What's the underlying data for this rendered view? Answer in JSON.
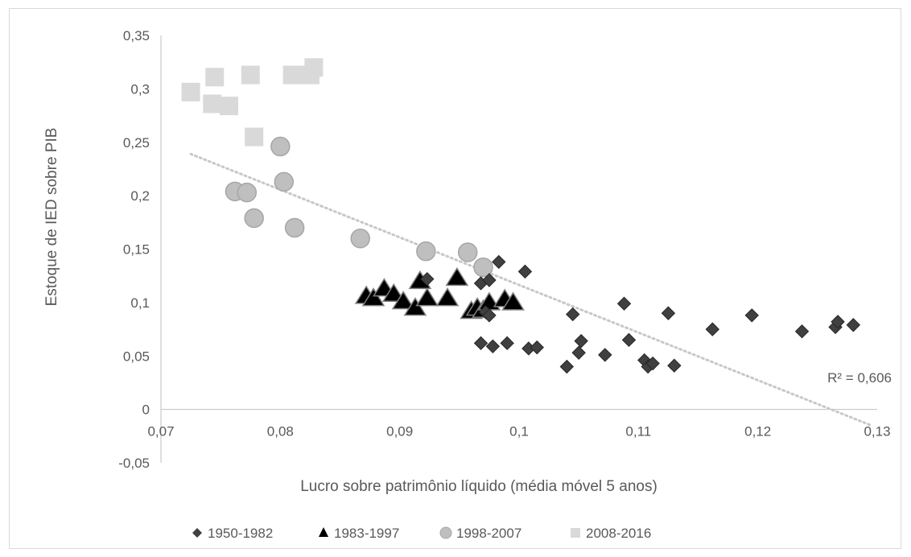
{
  "chart_data": {
    "type": "scatter",
    "xlabel": "Lucro sobre patrimônio líquido (média móvel 5 anos)",
    "ylabel": "Estoque de IED sobre PIB",
    "xlim": [
      0.07,
      0.13
    ],
    "ylim": [
      -0.05,
      0.35
    ],
    "x_ticks": [
      "0,07",
      "0,08",
      "0,09",
      "0,1",
      "0,11",
      "0,12",
      "0,13"
    ],
    "y_ticks": [
      "-0,05",
      "0",
      "0,05",
      "0,1",
      "0,15",
      "0,2",
      "0,25",
      "0,3",
      "0,35"
    ],
    "grid": false,
    "legend_position": "bottom",
    "trendline": {
      "type": "linear",
      "label": "R² = 0,606",
      "x_start": 0.0725,
      "y_start": 0.239,
      "x_end": 0.1295,
      "y_end": -0.015,
      "color": "#c8c8c8"
    },
    "series": [
      {
        "name": "1950-1982",
        "marker": "diamond",
        "color": "#404040",
        "stroke": "#262626",
        "points": [
          [
            0.0923,
            0.122
          ],
          [
            0.0968,
            0.118
          ],
          [
            0.0975,
            0.121
          ],
          [
            0.0983,
            0.138
          ],
          [
            0.1005,
            0.129
          ],
          [
            0.0968,
            0.062
          ],
          [
            0.0978,
            0.059
          ],
          [
            0.099,
            0.062
          ],
          [
            0.1008,
            0.057
          ],
          [
            0.1015,
            0.058
          ],
          [
            0.0972,
            0.091
          ],
          [
            0.0975,
            0.088
          ],
          [
            0.1045,
            0.089
          ],
          [
            0.104,
            0.04
          ],
          [
            0.105,
            0.053
          ],
          [
            0.1052,
            0.064
          ],
          [
            0.1072,
            0.051
          ],
          [
            0.1088,
            0.099
          ],
          [
            0.1092,
            0.065
          ],
          [
            0.1105,
            0.046
          ],
          [
            0.1108,
            0.04
          ],
          [
            0.1112,
            0.043
          ],
          [
            0.1125,
            0.09
          ],
          [
            0.113,
            0.041
          ],
          [
            0.1162,
            0.075
          ],
          [
            0.1195,
            0.088
          ],
          [
            0.1237,
            0.073
          ],
          [
            0.1265,
            0.077
          ],
          [
            0.1267,
            0.082
          ],
          [
            0.128,
            0.079
          ]
        ]
      },
      {
        "name": "1983-1997",
        "marker": "triangle",
        "color": "#000000",
        "stroke": "#7f7f7f",
        "points": [
          [
            0.0872,
            0.106
          ],
          [
            0.0878,
            0.104
          ],
          [
            0.0887,
            0.113
          ],
          [
            0.0895,
            0.108
          ],
          [
            0.0903,
            0.101
          ],
          [
            0.0913,
            0.095
          ],
          [
            0.0917,
            0.12
          ],
          [
            0.0923,
            0.104
          ],
          [
            0.094,
            0.104
          ],
          [
            0.0948,
            0.123
          ],
          [
            0.096,
            0.092
          ],
          [
            0.0965,
            0.095
          ],
          [
            0.097,
            0.093
          ],
          [
            0.0975,
            0.1
          ],
          [
            0.0988,
            0.103
          ],
          [
            0.0995,
            0.1
          ]
        ]
      },
      {
        "name": "1998-2007",
        "marker": "circle",
        "color": "#bfbfbf",
        "stroke": "#a6a6a6",
        "points": [
          [
            0.0762,
            0.204
          ],
          [
            0.0772,
            0.203
          ],
          [
            0.0778,
            0.179
          ],
          [
            0.08,
            0.246
          ],
          [
            0.0803,
            0.213
          ],
          [
            0.0812,
            0.17
          ],
          [
            0.0867,
            0.16
          ],
          [
            0.0922,
            0.148
          ],
          [
            0.0957,
            0.147
          ],
          [
            0.097,
            0.133
          ]
        ]
      },
      {
        "name": "2008-2016",
        "marker": "square",
        "color": "#d9d9d9",
        "stroke": "#d9d9d9",
        "points": [
          [
            0.0725,
            0.297
          ],
          [
            0.0743,
            0.286
          ],
          [
            0.0745,
            0.311
          ],
          [
            0.0757,
            0.284
          ],
          [
            0.0775,
            0.313
          ],
          [
            0.0778,
            0.255
          ],
          [
            0.081,
            0.313
          ],
          [
            0.0825,
            0.313
          ],
          [
            0.0828,
            0.32
          ]
        ]
      }
    ]
  }
}
